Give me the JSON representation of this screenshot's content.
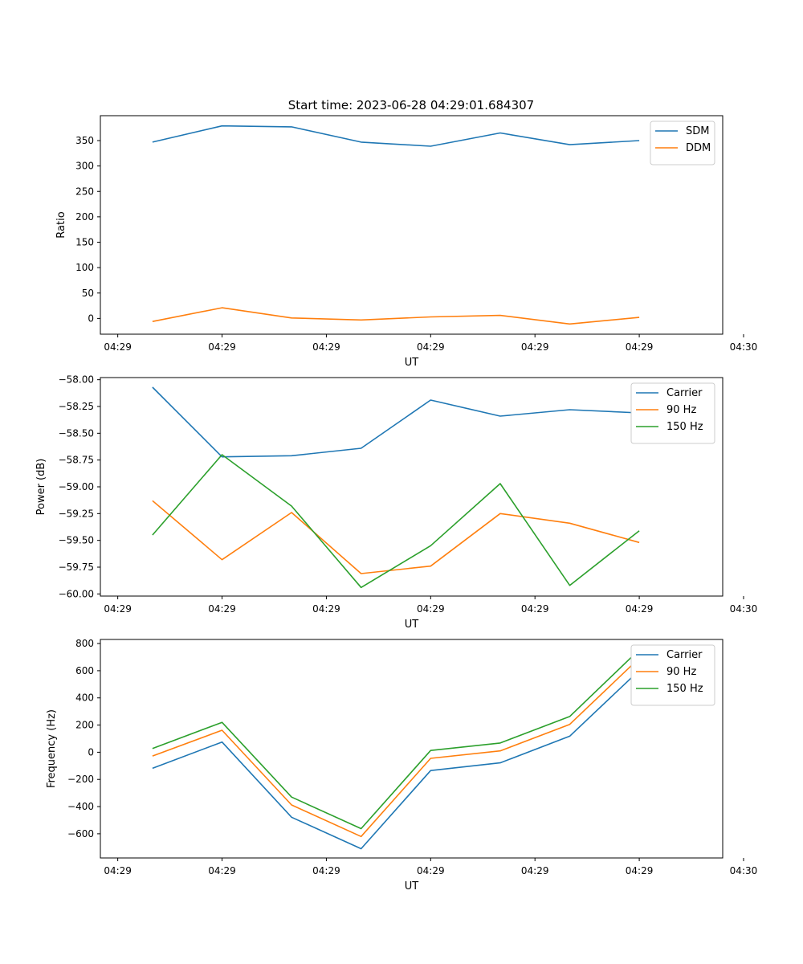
{
  "figure_title": "Start time: 2023-06-28 04:29:01.684307",
  "chart_data": [
    {
      "type": "line",
      "title": "Start time: 2023-06-28 04:29:01.684307",
      "xlabel": "UT",
      "ylabel": "Ratio",
      "x": [
        1,
        2,
        3,
        4,
        5,
        6,
        7,
        8
      ],
      "xlim": [
        0.25,
        9.2
      ],
      "xticks": [
        0.5,
        2.0,
        3.5,
        5.0,
        6.5,
        8.0,
        9.5
      ],
      "xtick_labels": [
        "04:29",
        "04:29",
        "04:29",
        "04:29",
        "04:29",
        "04:29",
        "04:30"
      ],
      "ylim": [
        -31,
        399
      ],
      "yticks": [
        0,
        50,
        100,
        150,
        200,
        250,
        300,
        350
      ],
      "ytick_labels": [
        "0",
        "50",
        "100",
        "150",
        "200",
        "250",
        "300",
        "350"
      ],
      "grid": false,
      "legend_position": "top-right",
      "series": [
        {
          "name": "SDM",
          "color": "#1f77b4",
          "values": [
            347,
            379,
            377,
            347,
            339,
            365,
            342,
            350
          ]
        },
        {
          "name": "DDM",
          "color": "#ff7f0e",
          "values": [
            -6,
            21,
            1,
            -3,
            3,
            6,
            -11,
            2
          ]
        }
      ]
    },
    {
      "type": "line",
      "xlabel": "UT",
      "ylabel": "Power (dB)",
      "x": [
        1,
        2,
        3,
        4,
        5,
        6,
        7,
        8
      ],
      "xlim": [
        0.25,
        9.2
      ],
      "xticks": [
        0.5,
        2.0,
        3.5,
        5.0,
        6.5,
        8.0,
        9.5
      ],
      "xtick_labels": [
        "04:29",
        "04:29",
        "04:29",
        "04:29",
        "04:29",
        "04:29",
        "04:30"
      ],
      "ylim": [
        -60.02,
        -57.98
      ],
      "yticks": [
        -60.0,
        -59.75,
        -59.5,
        -59.25,
        -59.0,
        -58.75,
        -58.5,
        -58.25,
        -58.0
      ],
      "ytick_labels": [
        "−60.00",
        "−59.75",
        "−59.50",
        "−59.25",
        "−59.00",
        "−58.75",
        "−58.50",
        "−58.25",
        "−58.00"
      ],
      "grid": false,
      "legend_position": "top-right",
      "series": [
        {
          "name": "Carrier",
          "color": "#1f77b4",
          "values": [
            -58.07,
            -58.72,
            -58.71,
            -58.64,
            -58.19,
            -58.34,
            -58.28,
            -58.31
          ]
        },
        {
          "name": "90 Hz",
          "color": "#ff7f0e",
          "values": [
            -59.13,
            -59.68,
            -59.24,
            -59.81,
            -59.74,
            -59.25,
            -59.34,
            -59.52
          ]
        },
        {
          "name": "150 Hz",
          "color": "#2ca02c",
          "values": [
            -59.45,
            -58.7,
            -59.18,
            -59.94,
            -59.55,
            -58.97,
            -59.92,
            -59.41
          ]
        }
      ]
    },
    {
      "type": "line",
      "xlabel": "UT",
      "ylabel": "Frequency (Hz)",
      "x": [
        1,
        2,
        3,
        4,
        5,
        6,
        7,
        8
      ],
      "xlim": [
        0.25,
        9.2
      ],
      "xticks": [
        0.5,
        2.0,
        3.5,
        5.0,
        6.5,
        8.0,
        9.5
      ],
      "xtick_labels": [
        "04:29",
        "04:29",
        "04:29",
        "04:29",
        "04:29",
        "04:29",
        "04:30"
      ],
      "ylim": [
        -778,
        830
      ],
      "yticks": [
        -600,
        -400,
        -200,
        0,
        200,
        400,
        600,
        800
      ],
      "ytick_labels": [
        "−600",
        "−400",
        "−200",
        "0",
        "200",
        "400",
        "600",
        "800"
      ],
      "grid": false,
      "legend_position": "top-right",
      "series": [
        {
          "name": "Carrier",
          "color": "#1f77b4",
          "values": [
            -118,
            75,
            -478,
            -710,
            -135,
            -78,
            118,
            603
          ]
        },
        {
          "name": "90 Hz",
          "color": "#ff7f0e",
          "values": [
            -28,
            162,
            -388,
            -620,
            -45,
            10,
            205,
            693
          ]
        },
        {
          "name": "150 Hz",
          "color": "#2ca02c",
          "values": [
            28,
            220,
            -330,
            -562,
            13,
            68,
            263,
            755
          ]
        }
      ]
    }
  ]
}
